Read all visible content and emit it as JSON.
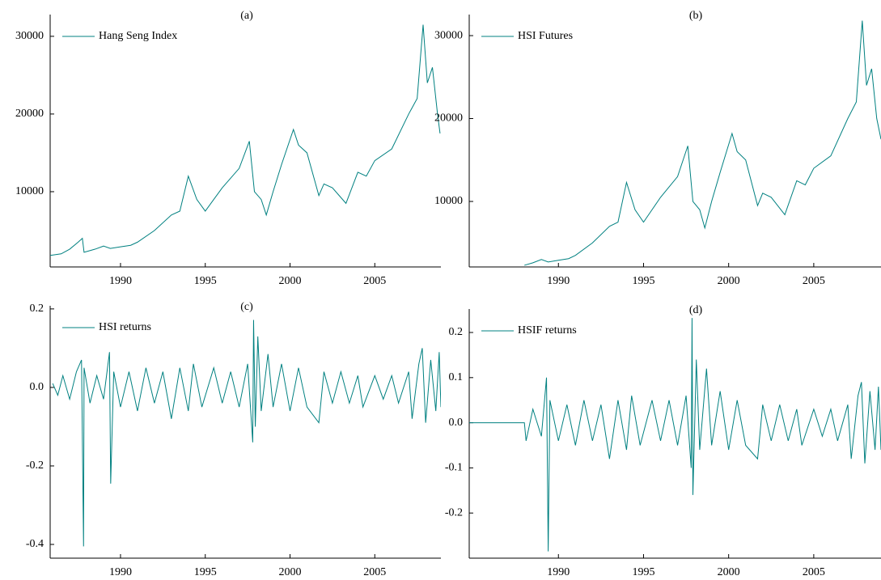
{
  "chart_data": [
    {
      "type": "line",
      "title": "(a)",
      "x": [
        1985.85,
        1986.5,
        1987.0,
        1987.5,
        1987.75,
        1987.85,
        1988.5,
        1989.0,
        1989.4,
        1990.0,
        1990.6,
        1991.0,
        1992.0,
        1993.0,
        1993.5,
        1994.0,
        1994.5,
        1995.0,
        1995.5,
        1996.0,
        1997.0,
        1997.6,
        1997.9,
        1998.3,
        1998.6,
        1999.0,
        1999.5,
        2000.2,
        2000.5,
        2001.0,
        2001.7,
        2002.0,
        2002.5,
        2003.3,
        2004.0,
        2004.5,
        2005.0,
        2006.0,
        2007.0,
        2007.5,
        2007.85,
        2008.1,
        2008.4,
        2008.7,
        2008.85
      ],
      "series": [
        {
          "name": "Hang Seng Index",
          "color": "#008080",
          "values": [
            1800,
            2000,
            2600,
            3500,
            4000,
            2200,
            2600,
            3000,
            2700,
            2900,
            3100,
            3500,
            5000,
            7000,
            7500,
            12000,
            9000,
            7500,
            9000,
            10500,
            13000,
            16500,
            10000,
            9000,
            7000,
            10000,
            13500,
            18000,
            16000,
            15000,
            9500,
            11000,
            10500,
            8500,
            12500,
            12000,
            14000,
            15500,
            20000,
            22000,
            31500,
            24000,
            26000,
            20000,
            17500
          ]
        }
      ],
      "xlim": [
        1985.85,
        2008.9
      ],
      "ylim": [
        313,
        32800
      ],
      "xticks": [
        1990,
        1995,
        2000,
        2005
      ],
      "yticks": [
        10000,
        20000,
        30000
      ]
    },
    {
      "type": "line",
      "title": "(b)",
      "x": [
        1988.0,
        1988.5,
        1989.0,
        1989.4,
        1990.0,
        1990.6,
        1991.0,
        1992.0,
        1993.0,
        1993.5,
        1994.0,
        1994.5,
        1995.0,
        1995.5,
        1996.0,
        1997.0,
        1997.6,
        1997.9,
        1998.3,
        1998.6,
        1999.0,
        1999.5,
        2000.2,
        2000.5,
        2001.0,
        2001.7,
        2002.0,
        2002.5,
        2003.3,
        2004.0,
        2004.5,
        2005.0,
        2006.0,
        2007.0,
        2007.5,
        2007.85,
        2008.1,
        2008.4,
        2008.7,
        2008.95
      ],
      "series": [
        {
          "name": "HSI Futures",
          "color": "#008080",
          "values": [
            2300,
            2600,
            3000,
            2700,
            2900,
            3100,
            3500,
            5000,
            7000,
            7500,
            12300,
            9000,
            7500,
            9000,
            10500,
            13000,
            16700,
            10000,
            9000,
            6800,
            10000,
            13500,
            18200,
            16000,
            15000,
            9500,
            11000,
            10500,
            8400,
            12500,
            12000,
            14000,
            15500,
            20000,
            22000,
            31800,
            24000,
            26000,
            20000,
            17500
          ]
        }
      ],
      "xlim": [
        1984.76,
        2008.95
      ],
      "ylim": [
        2100,
        32540
      ],
      "xticks": [
        1990,
        1995,
        2000,
        2005
      ],
      "yticks": [
        10000,
        20000,
        30000
      ]
    },
    {
      "type": "line",
      "title": "(c)",
      "x": [
        1986.0,
        1986.3,
        1986.6,
        1987.0,
        1987.4,
        1987.7,
        1987.82,
        1987.85,
        1988.2,
        1988.6,
        1989.0,
        1989.35,
        1989.42,
        1989.6,
        1990.0,
        1990.5,
        1991.0,
        1991.5,
        1992.0,
        1992.5,
        1993.0,
        1993.5,
        1994.0,
        1994.3,
        1994.8,
        1995.5,
        1996.0,
        1996.5,
        1997.0,
        1997.5,
        1997.8,
        1997.85,
        1997.95,
        1998.1,
        1998.3,
        1998.7,
        1999.0,
        1999.5,
        2000.0,
        2000.5,
        2001.0,
        2001.7,
        2002.0,
        2002.5,
        2003.0,
        2003.5,
        2004.0,
        2004.3,
        2005.0,
        2005.5,
        2006.0,
        2006.4,
        2007.0,
        2007.2,
        2007.6,
        2007.8,
        2008.0,
        2008.3,
        2008.6,
        2008.8,
        2008.9
      ],
      "series": [
        {
          "name": "HSI returns",
          "color": "#008080",
          "values": [
            0.01,
            -0.02,
            0.03,
            -0.03,
            0.04,
            0.07,
            -0.405,
            0.05,
            -0.04,
            0.03,
            -0.03,
            0.09,
            -0.245,
            0.04,
            -0.05,
            0.04,
            -0.06,
            0.05,
            -0.04,
            0.04,
            -0.08,
            0.05,
            -0.06,
            0.06,
            -0.05,
            0.05,
            -0.04,
            0.04,
            -0.05,
            0.06,
            -0.14,
            0.172,
            -0.1,
            0.13,
            -0.06,
            0.085,
            -0.05,
            0.06,
            -0.06,
            0.05,
            -0.05,
            -0.09,
            0.04,
            -0.04,
            0.04,
            -0.04,
            0.03,
            -0.05,
            0.03,
            -0.03,
            0.03,
            -0.04,
            0.04,
            -0.08,
            0.06,
            0.1,
            -0.09,
            0.07,
            -0.06,
            0.09,
            -0.05
          ]
        }
      ],
      "xlim": [
        1985.85,
        2008.9
      ],
      "ylim": [
        -0.435,
        0.208
      ],
      "xticks": [
        1990,
        1995,
        2000,
        2005
      ],
      "yticks": [
        0.2,
        {
          "value": 0,
          "label": "0.0"
        },
        -0.2,
        -0.4
      ]
    },
    {
      "type": "line",
      "title": "(d)",
      "x": [
        1984.76,
        1988.0,
        1988.1,
        1988.5,
        1989.0,
        1989.3,
        1989.4,
        1989.5,
        1990.0,
        1990.5,
        1991.0,
        1991.5,
        1992.0,
        1992.5,
        1993.0,
        1993.5,
        1994.0,
        1994.3,
        1994.8,
        1995.5,
        1996.0,
        1996.5,
        1997.0,
        1997.5,
        1997.8,
        1997.85,
        1997.9,
        1998.1,
        1998.3,
        1998.7,
        1999.0,
        1999.5,
        2000.0,
        2000.5,
        2001.0,
        2001.7,
        2002.0,
        2002.5,
        2003.0,
        2003.5,
        2004.0,
        2004.3,
        2005.0,
        2005.5,
        2006.0,
        2006.4,
        2007.0,
        2007.2,
        2007.6,
        2007.8,
        2008.0,
        2008.3,
        2008.6,
        2008.8,
        2008.95
      ],
      "series": [
        {
          "name": "HSIF returns",
          "color": "#008080",
          "values": [
            0,
            0,
            -0.04,
            0.03,
            -0.03,
            0.1,
            -0.285,
            0.05,
            -0.04,
            0.04,
            -0.05,
            0.05,
            -0.04,
            0.04,
            -0.08,
            0.05,
            -0.06,
            0.06,
            -0.05,
            0.05,
            -0.04,
            0.05,
            -0.05,
            0.06,
            -0.1,
            0.232,
            -0.16,
            0.14,
            -0.06,
            0.12,
            -0.05,
            0.07,
            -0.06,
            0.05,
            -0.05,
            -0.08,
            0.04,
            -0.04,
            0.04,
            -0.04,
            0.03,
            -0.05,
            0.03,
            -0.03,
            0.03,
            -0.04,
            0.04,
            -0.08,
            0.06,
            0.09,
            -0.09,
            0.07,
            -0.06,
            0.08,
            -0.06
          ]
        }
      ],
      "xlim": [
        1984.76,
        2008.95
      ],
      "ylim": [
        -0.3,
        0.252
      ],
      "xticks": [
        1990,
        1995,
        2000,
        2005
      ],
      "yticks": [
        0.2,
        0.1,
        {
          "value": 0,
          "label": "0.0"
        },
        -0.1,
        -0.2
      ]
    }
  ]
}
